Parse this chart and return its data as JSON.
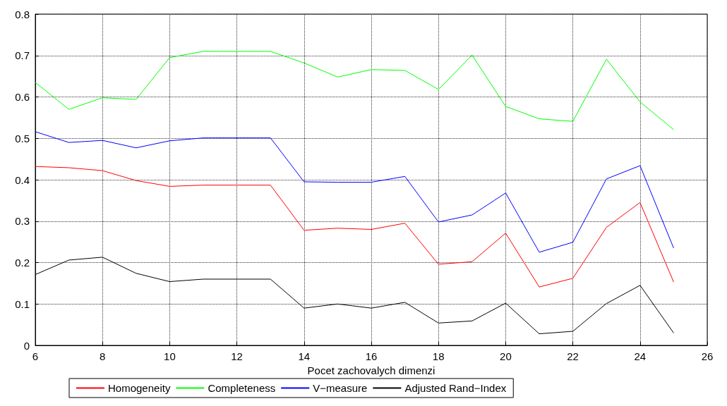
{
  "chart_data": {
    "type": "line",
    "xlabel": "Pocet zachovalych dimenzi",
    "x": [
      6,
      7,
      8,
      9,
      10,
      11,
      12,
      13,
      14,
      15,
      16,
      17,
      18,
      19,
      20,
      21,
      22,
      23,
      24,
      25
    ],
    "series": [
      {
        "name": "Homogeneity",
        "color": "#ff0000",
        "values": [
          0.432,
          0.429,
          0.422,
          0.398,
          0.384,
          0.387,
          0.387,
          0.387,
          0.278,
          0.283,
          0.28,
          0.295,
          0.196,
          0.202,
          0.271,
          0.141,
          0.162,
          0.285,
          0.345,
          0.153
        ]
      },
      {
        "name": "Completeness",
        "color": "#00ff00",
        "values": [
          0.635,
          0.57,
          0.598,
          0.594,
          0.695,
          0.71,
          0.71,
          0.71,
          0.682,
          0.648,
          0.666,
          0.664,
          0.618,
          0.701,
          0.577,
          0.547,
          0.541,
          0.691,
          0.588,
          0.521
        ]
      },
      {
        "name": "V−measure",
        "color": "#0000ff",
        "values": [
          0.516,
          0.49,
          0.495,
          0.477,
          0.494,
          0.501,
          0.501,
          0.501,
          0.395,
          0.394,
          0.394,
          0.408,
          0.298,
          0.315,
          0.368,
          0.225,
          0.249,
          0.402,
          0.434,
          0.235
        ]
      },
      {
        "name": "Adjusted Rand−Index",
        "color": "#000000",
        "values": [
          0.171,
          0.206,
          0.213,
          0.174,
          0.154,
          0.16,
          0.16,
          0.16,
          0.09,
          0.1,
          0.09,
          0.104,
          0.054,
          0.059,
          0.102,
          0.028,
          0.034,
          0.101,
          0.145,
          0.03
        ]
      }
    ],
    "xlim": [
      6,
      26
    ],
    "xticks": [
      6,
      8,
      10,
      12,
      14,
      16,
      18,
      20,
      22,
      24,
      26
    ],
    "ylim": [
      0,
      0.8
    ],
    "yticks": [
      0,
      0.1,
      0.2,
      0.3,
      0.4,
      0.5,
      0.6,
      0.7,
      0.8
    ],
    "grid": true,
    "legend": "bottom left",
    "marker": "none",
    "line_style": "solid"
  }
}
